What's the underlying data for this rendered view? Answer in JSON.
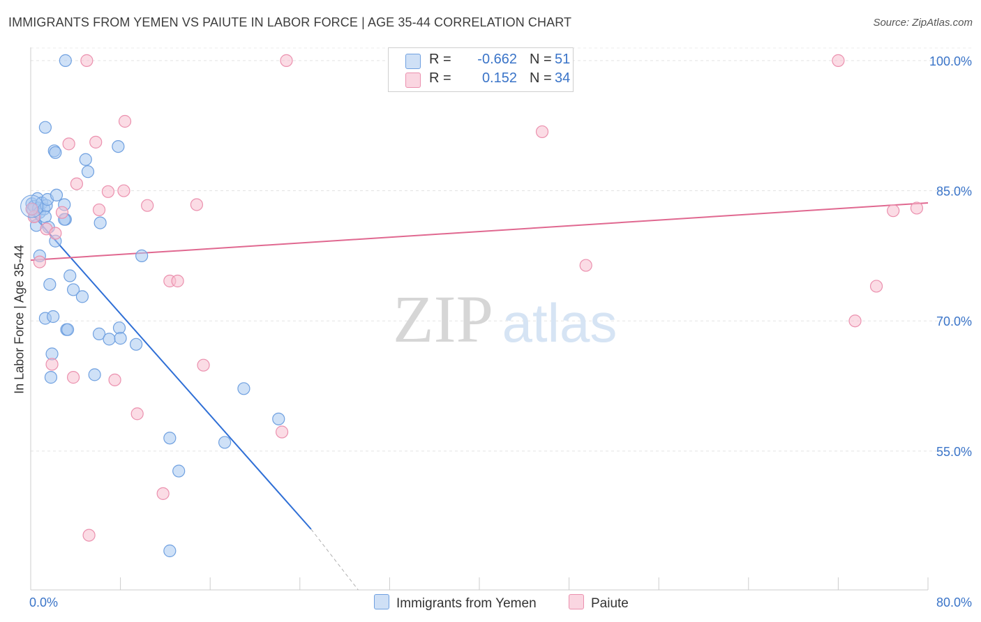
{
  "title": "IMMIGRANTS FROM YEMEN VS PAIUTE IN LABOR FORCE | AGE 35-44 CORRELATION CHART",
  "source": "Source: ZipAtlas.com",
  "watermark": {
    "zip": "ZIP",
    "atlas": "atlas"
  },
  "legend": {
    "rows": [
      {
        "r_label": "R =",
        "r_value": "-0.662",
        "n_label": "N =",
        "n_value": "51",
        "color": "#a8c8f0",
        "border": "#6fa0e0"
      },
      {
        "r_label": "R =",
        "r_value": "0.152",
        "n_label": "N =",
        "n_value": "34",
        "color": "#f7c0d0",
        "border": "#eb90ae"
      }
    ]
  },
  "chart_data": {
    "type": "scatter",
    "title": "IMMIGRANTS FROM YEMEN VS PAIUTE IN LABOR FORCE | AGE 35-44 CORRELATION CHART",
    "xlabel": "",
    "ylabel": "In Labor Force | Age 35-44",
    "xlim": [
      0,
      80
    ],
    "ylim": [
      39,
      102
    ],
    "x_tick_labels": [
      {
        "value": 0,
        "label": "0.0%"
      },
      {
        "value": 80,
        "label": "80.0%"
      }
    ],
    "y_tick_labels": [
      {
        "value": 100,
        "label": "100.0%"
      },
      {
        "value": 85,
        "label": "85.0%"
      },
      {
        "value": 70,
        "label": "70.0%"
      },
      {
        "value": 55,
        "label": "55.0%"
      }
    ],
    "series": [
      {
        "name": "Immigrants from Yemen",
        "color": "#6fa0e0",
        "fill": "#a8c8f0",
        "trend": {
          "x0": 0,
          "y0": 82.5,
          "x1": 25,
          "y1": 46.0,
          "dash_to_x": 29.2,
          "dash_to_y": 39.0,
          "color": "#2f6fd6"
        },
        "points": [
          [
            0.1,
            83.5
          ],
          [
            0.2,
            82.8
          ],
          [
            0.3,
            83.2
          ],
          [
            0.4,
            82.1
          ],
          [
            0.5,
            81.0
          ],
          [
            0.6,
            84.1
          ],
          [
            0.7,
            83.0
          ],
          [
            0.8,
            82.5
          ],
          [
            1.0,
            83.6
          ],
          [
            1.2,
            82.9
          ],
          [
            1.3,
            82.0
          ],
          [
            1.4,
            83.3
          ],
          [
            1.5,
            84.0
          ],
          [
            1.6,
            80.8
          ],
          [
            1.7,
            74.2
          ],
          [
            1.8,
            63.5
          ],
          [
            1.9,
            66.2
          ],
          [
            0.8,
            77.5
          ],
          [
            1.3,
            70.3
          ],
          [
            2.0,
            70.5
          ],
          [
            2.1,
            89.6
          ],
          [
            2.2,
            89.4
          ],
          [
            2.2,
            79.2
          ],
          [
            2.3,
            84.5
          ],
          [
            1.3,
            92.3
          ],
          [
            3.1,
            100.0
          ],
          [
            3.0,
            83.4
          ],
          [
            3.1,
            81.7
          ],
          [
            3.2,
            69.0
          ],
          [
            3.3,
            69.0
          ],
          [
            3.5,
            75.2
          ],
          [
            3.8,
            73.6
          ],
          [
            4.6,
            72.8
          ],
          [
            4.9,
            88.6
          ],
          [
            5.1,
            87.2
          ],
          [
            5.7,
            63.8
          ],
          [
            6.1,
            68.5
          ],
          [
            6.2,
            81.3
          ],
          [
            7.0,
            67.9
          ],
          [
            7.8,
            90.1
          ],
          [
            7.9,
            69.2
          ],
          [
            8.0,
            68.0
          ],
          [
            9.4,
            67.3
          ],
          [
            9.9,
            77.5
          ],
          [
            12.4,
            56.5
          ],
          [
            13.2,
            52.7
          ],
          [
            17.3,
            56.0
          ],
          [
            19.0,
            62.2
          ],
          [
            22.1,
            58.7
          ],
          [
            12.4,
            43.5
          ],
          [
            3.0,
            81.7
          ]
        ]
      },
      {
        "name": "Paiute",
        "color": "#eb90ae",
        "fill": "#f7c0d0",
        "trend": {
          "x0": 0,
          "y0": 77.0,
          "x1": 80,
          "y1": 83.6,
          "color": "#e06890"
        },
        "points": [
          [
            0.3,
            82.0
          ],
          [
            0.8,
            76.8
          ],
          [
            1.4,
            80.6
          ],
          [
            1.9,
            65.0
          ],
          [
            2.2,
            80.1
          ],
          [
            2.8,
            82.5
          ],
          [
            3.4,
            90.4
          ],
          [
            3.8,
            63.5
          ],
          [
            4.1,
            85.8
          ],
          [
            5.0,
            100.0
          ],
          [
            5.2,
            45.3
          ],
          [
            5.8,
            90.6
          ],
          [
            6.1,
            82.8
          ],
          [
            6.9,
            84.9
          ],
          [
            7.5,
            63.2
          ],
          [
            8.3,
            85.0
          ],
          [
            8.4,
            93.0
          ],
          [
            9.5,
            59.3
          ],
          [
            10.4,
            83.3
          ],
          [
            11.8,
            50.1
          ],
          [
            12.4,
            74.6
          ],
          [
            13.1,
            74.6
          ],
          [
            14.8,
            83.4
          ],
          [
            15.4,
            64.9
          ],
          [
            22.4,
            57.2
          ],
          [
            22.8,
            100.0
          ],
          [
            45.6,
            91.8
          ],
          [
            49.5,
            76.4
          ],
          [
            72.0,
            100.0
          ],
          [
            73.5,
            70.0
          ],
          [
            75.4,
            74.0
          ],
          [
            76.9,
            82.7
          ],
          [
            79.0,
            83.0
          ],
          [
            0.1,
            82.9
          ]
        ]
      }
    ]
  },
  "bottom_legend": [
    {
      "label": "Immigrants from Yemen",
      "color": "#a8c8f0",
      "border": "#6fa0e0"
    },
    {
      "label": "Paiute",
      "color": "#f7c0d0",
      "border": "#eb90ae"
    }
  ]
}
